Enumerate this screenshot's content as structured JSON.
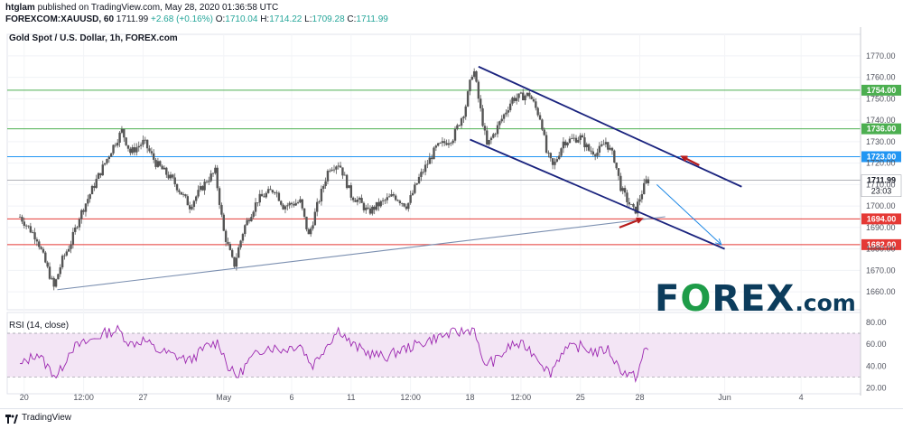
{
  "header": {
    "user": "htglam",
    "published_text": "published on TradingView.com, May 28, 2020 01:36:58 UTC",
    "symbol": "FOREXCOM:XAUUSD, 60",
    "price": "1711.99",
    "change": "+2.68 (+0.16%)",
    "o_label": "O:",
    "o_value": "1710.04",
    "h_label": "H:",
    "h_value": "1714.22",
    "l_label": "L:",
    "l_value": "1709.28",
    "c_label": "C:",
    "c_value": "1711.99"
  },
  "chart_title": "Gold Spot / U.S. Dollar, 1h, FOREX.com",
  "rsi_label": "RSI (14, close)",
  "footer": {
    "brand": "TradingView"
  },
  "logo": {
    "part1": "F",
    "part2": "O",
    "part3": "REX",
    "part4": ".com"
  },
  "colors": {
    "candle": "#555555",
    "green_line": "#4caf50",
    "blue_line": "#2196f3",
    "red_line": "#e53935",
    "channel": "#1a237e",
    "trend": "#7b8fb0",
    "rsi_line": "#9c27b0",
    "rsi_band": "#f3e5f5",
    "arrow_red": "#b71c1c",
    "arrow_blue": "#1e88e5"
  },
  "chart_data": {
    "type": "candlestick",
    "ylim": [
      1655,
      1775
    ],
    "y_ticks": [
      1660,
      1670,
      1680,
      1690,
      1700,
      1710,
      1720,
      1730,
      1740,
      1750,
      1760,
      1770
    ],
    "x_labels": [
      {
        "label": "20",
        "t": 0.25
      },
      {
        "label": "12:00",
        "t": 3.75
      },
      {
        "label": "27",
        "t": 7.25
      },
      {
        "label": "May",
        "t": 12
      },
      {
        "label": "6",
        "t": 16
      },
      {
        "label": "11",
        "t": 19.5
      },
      {
        "label": "12:00",
        "t": 23
      },
      {
        "label": "18",
        "t": 26.5
      },
      {
        "label": "12:00",
        "t": 29.5
      },
      {
        "label": "25",
        "t": 33
      },
      {
        "label": "28",
        "t": 36.5
      },
      {
        "label": "Jun",
        "t": 41.5
      },
      {
        "label": "4",
        "t": 46
      }
    ],
    "x_range": [
      -0.75,
      49.5
    ],
    "price_path": [
      [
        0,
        1695
      ],
      [
        1,
        1685
      ],
      [
        2,
        1662
      ],
      [
        2.5,
        1675
      ],
      [
        3,
        1683
      ],
      [
        3.5,
        1695
      ],
      [
        4.5,
        1712
      ],
      [
        5.5,
        1728
      ],
      [
        6,
        1735
      ],
      [
        6.5,
        1725
      ],
      [
        7.3,
        1730
      ],
      [
        8,
        1720
      ],
      [
        9,
        1712
      ],
      [
        10,
        1700
      ],
      [
        11,
        1712
      ],
      [
        11.5,
        1716
      ],
      [
        12,
        1688
      ],
      [
        12.6,
        1672
      ],
      [
        13.2,
        1690
      ],
      [
        14,
        1703
      ],
      [
        15,
        1708
      ],
      [
        15.5,
        1700
      ],
      [
        16.5,
        1702
      ],
      [
        17,
        1686
      ],
      [
        17.5,
        1700
      ],
      [
        18.2,
        1718
      ],
      [
        18.8,
        1720
      ],
      [
        19.5,
        1705
      ],
      [
        20,
        1702
      ],
      [
        20.5,
        1697
      ],
      [
        21,
        1700
      ],
      [
        22,
        1705
      ],
      [
        22.8,
        1700
      ],
      [
        23.5,
        1713
      ],
      [
        24,
        1720
      ],
      [
        24.5,
        1727
      ],
      [
        25.5,
        1732
      ],
      [
        26.2,
        1745
      ],
      [
        26.7,
        1765
      ],
      [
        27,
        1750
      ],
      [
        27.5,
        1728
      ],
      [
        28,
        1735
      ],
      [
        29,
        1750
      ],
      [
        30,
        1752
      ],
      [
        30.7,
        1740
      ],
      [
        31,
        1725
      ],
      [
        31.4,
        1718
      ],
      [
        32,
        1730
      ],
      [
        33,
        1732
      ],
      [
        33.5,
        1726
      ],
      [
        34,
        1725
      ],
      [
        34.5,
        1730
      ],
      [
        35,
        1722
      ],
      [
        35.4,
        1708
      ],
      [
        35.8,
        1702
      ],
      [
        36.2,
        1697
      ],
      [
        36.6,
        1706
      ],
      [
        36.9,
        1712
      ],
      [
        37.1,
        1711.99
      ]
    ],
    "horizontal_levels": [
      {
        "value": 1754.0,
        "label": "1754.00",
        "color": "green"
      },
      {
        "value": 1736.0,
        "label": "1736.00",
        "color": "green"
      },
      {
        "value": 1723.0,
        "label": "1723.00",
        "color": "blue"
      },
      {
        "value": 1694.0,
        "label": "1694.00",
        "color": "red"
      },
      {
        "value": 1682.0,
        "label": "1682.00",
        "color": "red"
      }
    ],
    "current_price": {
      "value": 1711.99,
      "label": "1711.99",
      "countdown": "23:03"
    },
    "trendlines": [
      {
        "name": "support-trendline",
        "from": [
          2.2,
          1661
        ],
        "to": [
          38,
          1695
        ],
        "color": "trend"
      },
      {
        "name": "channel-upper",
        "from": [
          27,
          1765
        ],
        "to": [
          42.5,
          1709
        ],
        "color": "channel"
      },
      {
        "name": "channel-lower",
        "from": [
          26.5,
          1731
        ],
        "to": [
          41.5,
          1680
        ],
        "color": "channel"
      }
    ],
    "arrows": [
      {
        "name": "red-arrow-upper",
        "from": [
          40,
          1719
        ],
        "to": [
          39,
          1723
        ],
        "color": "arrow_red"
      },
      {
        "name": "red-arrow-lower",
        "from": [
          35.3,
          1690
        ],
        "to": [
          36.6,
          1694
        ],
        "color": "arrow_red"
      },
      {
        "name": "blue-projection-arrow",
        "from": [
          37.5,
          1710
        ],
        "to": [
          41.3,
          1682
        ],
        "color": "arrow_blue"
      }
    ],
    "rsi": {
      "ylim": [
        18,
        84
      ],
      "y_ticks": [
        20,
        40,
        60,
        80
      ],
      "band": [
        30,
        70
      ],
      "path": [
        [
          0,
          40
        ],
        [
          1,
          52
        ],
        [
          1.7,
          38
        ],
        [
          2.2,
          30
        ],
        [
          3,
          56
        ],
        [
          4,
          62
        ],
        [
          5,
          70
        ],
        [
          5.8,
          73
        ],
        [
          6.5,
          60
        ],
        [
          7.3,
          64
        ],
        [
          8,
          55
        ],
        [
          9,
          50
        ],
        [
          10,
          45
        ],
        [
          11,
          58
        ],
        [
          11.7,
          62
        ],
        [
          12.3,
          38
        ],
        [
          12.8,
          30
        ],
        [
          13.5,
          45
        ],
        [
          14.5,
          58
        ],
        [
          15.5,
          55
        ],
        [
          16.5,
          60
        ],
        [
          17.2,
          40
        ],
        [
          18,
          58
        ],
        [
          18.8,
          74
        ],
        [
          19.5,
          60
        ],
        [
          20.5,
          52
        ],
        [
          21.5,
          48
        ],
        [
          22.5,
          55
        ],
        [
          23.5,
          60
        ],
        [
          24.5,
          66
        ],
        [
          25.5,
          70
        ],
        [
          26.3,
          72
        ],
        [
          26.8,
          75
        ],
        [
          27.2,
          42
        ],
        [
          28,
          45
        ],
        [
          29,
          60
        ],
        [
          29.8,
          58
        ],
        [
          30.5,
          48
        ],
        [
          31.2,
          33
        ],
        [
          32,
          55
        ],
        [
          33,
          58
        ],
        [
          34,
          52
        ],
        [
          34.6,
          56
        ],
        [
          35.3,
          38
        ],
        [
          35.8,
          32
        ],
        [
          36.3,
          30
        ],
        [
          36.8,
          55
        ],
        [
          37.1,
          55
        ]
      ]
    }
  }
}
